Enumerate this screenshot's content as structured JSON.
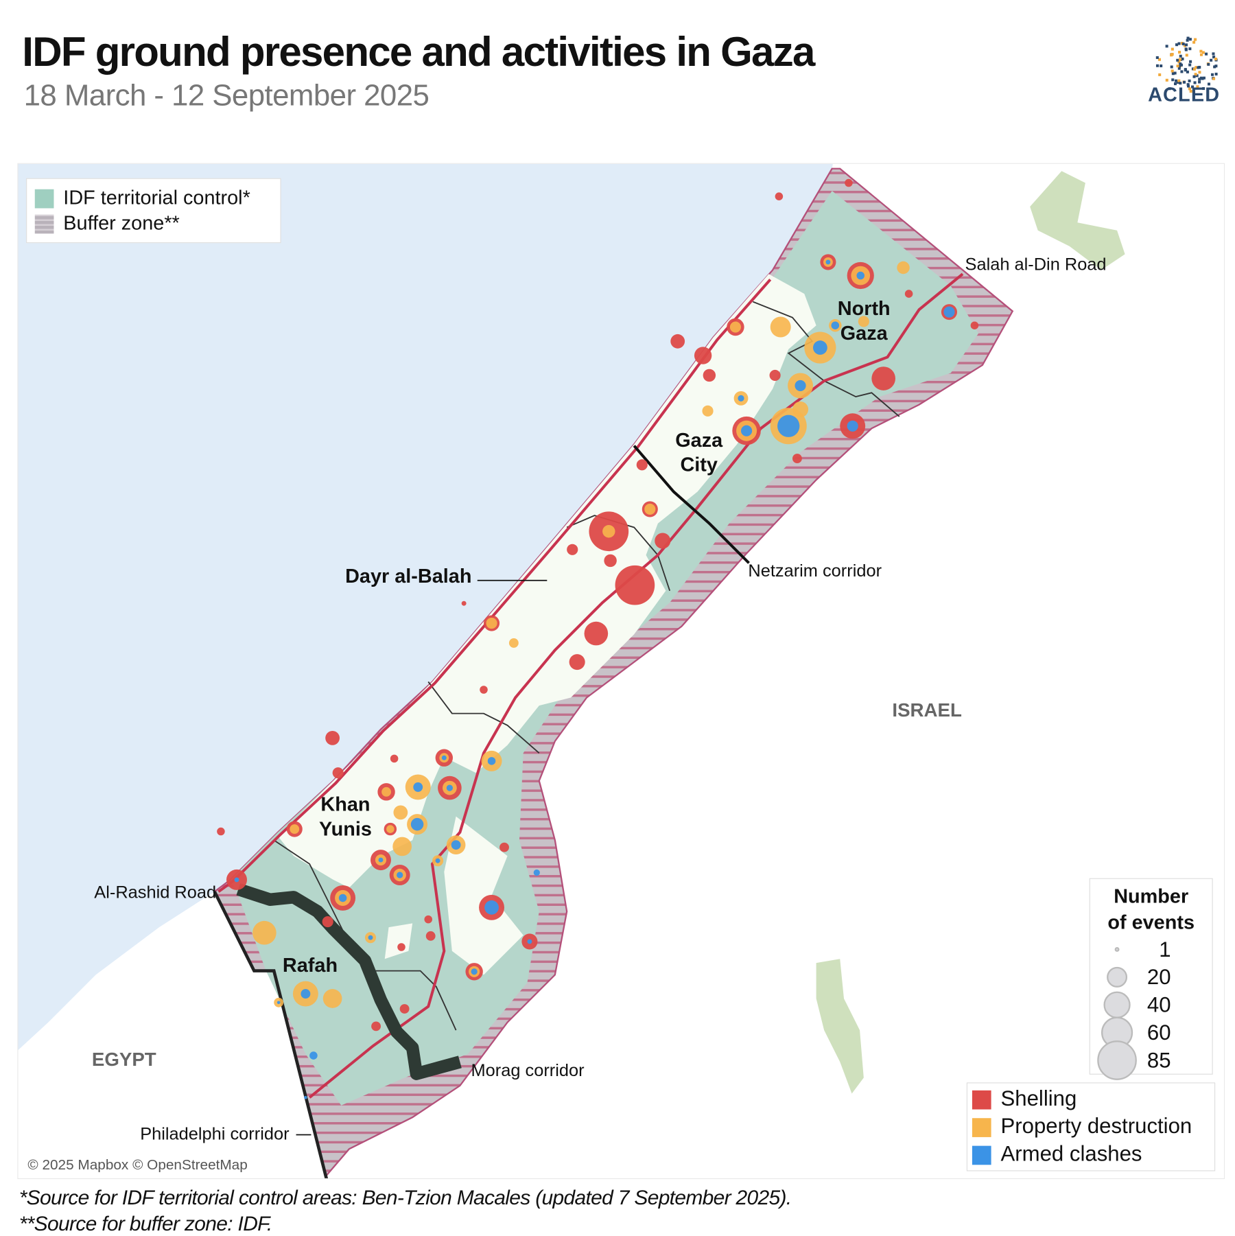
{
  "header": {
    "title": "IDF ground presence and activities in Gaza",
    "subtitle": "18 March - 12 September 2025",
    "logo_text": "ACLED"
  },
  "area_legend": {
    "items": [
      {
        "label": "IDF territorial control*",
        "color": "#9fcfc0"
      },
      {
        "label": "Buffer zone**",
        "color": "#b9b2ba"
      }
    ]
  },
  "size_legend": {
    "title_line1": "Number",
    "title_line2": "of events",
    "values": [
      "1",
      "20",
      "40",
      "60",
      "85"
    ]
  },
  "type_legend": {
    "items": [
      {
        "label": "Shelling",
        "color": "#dd4a48"
      },
      {
        "label": "Property destruction",
        "color": "#f7b54c"
      },
      {
        "label": "Armed clashes",
        "color": "#3b93e6"
      }
    ]
  },
  "map": {
    "places": {
      "north_gaza_1": "North",
      "north_gaza_2": "Gaza",
      "gaza_city_1": "Gaza",
      "gaza_city_2": "City",
      "dayr_al_balah": "Dayr al-Balah",
      "khan_yunis_1": "Khan",
      "khan_yunis_2": "Yunis",
      "rafah": "Rafah"
    },
    "countries": {
      "egypt": "EGYPT",
      "israel": "ISRAEL"
    },
    "features": {
      "salah_al_din": "Salah al-Din Road",
      "netzarim": "Netzarim corridor",
      "al_rashid": "Al-Rashid Road",
      "morag": "Morag corridor",
      "philadelphi": "Philadelphi corridor"
    },
    "attribution": "© 2025 Mapbox © OpenStreetMap",
    "colors": {
      "sea": "#e0ecf8",
      "control": "#b5d6cb",
      "road": "#c8334f",
      "corridor": "#222"
    }
  },
  "footnotes": {
    "note1": "*Source for IDF territorial control areas: Ben-Tzion Macales (updated 7 September 2025).",
    "note2": "**Source for buffer zone: IDF."
  }
}
